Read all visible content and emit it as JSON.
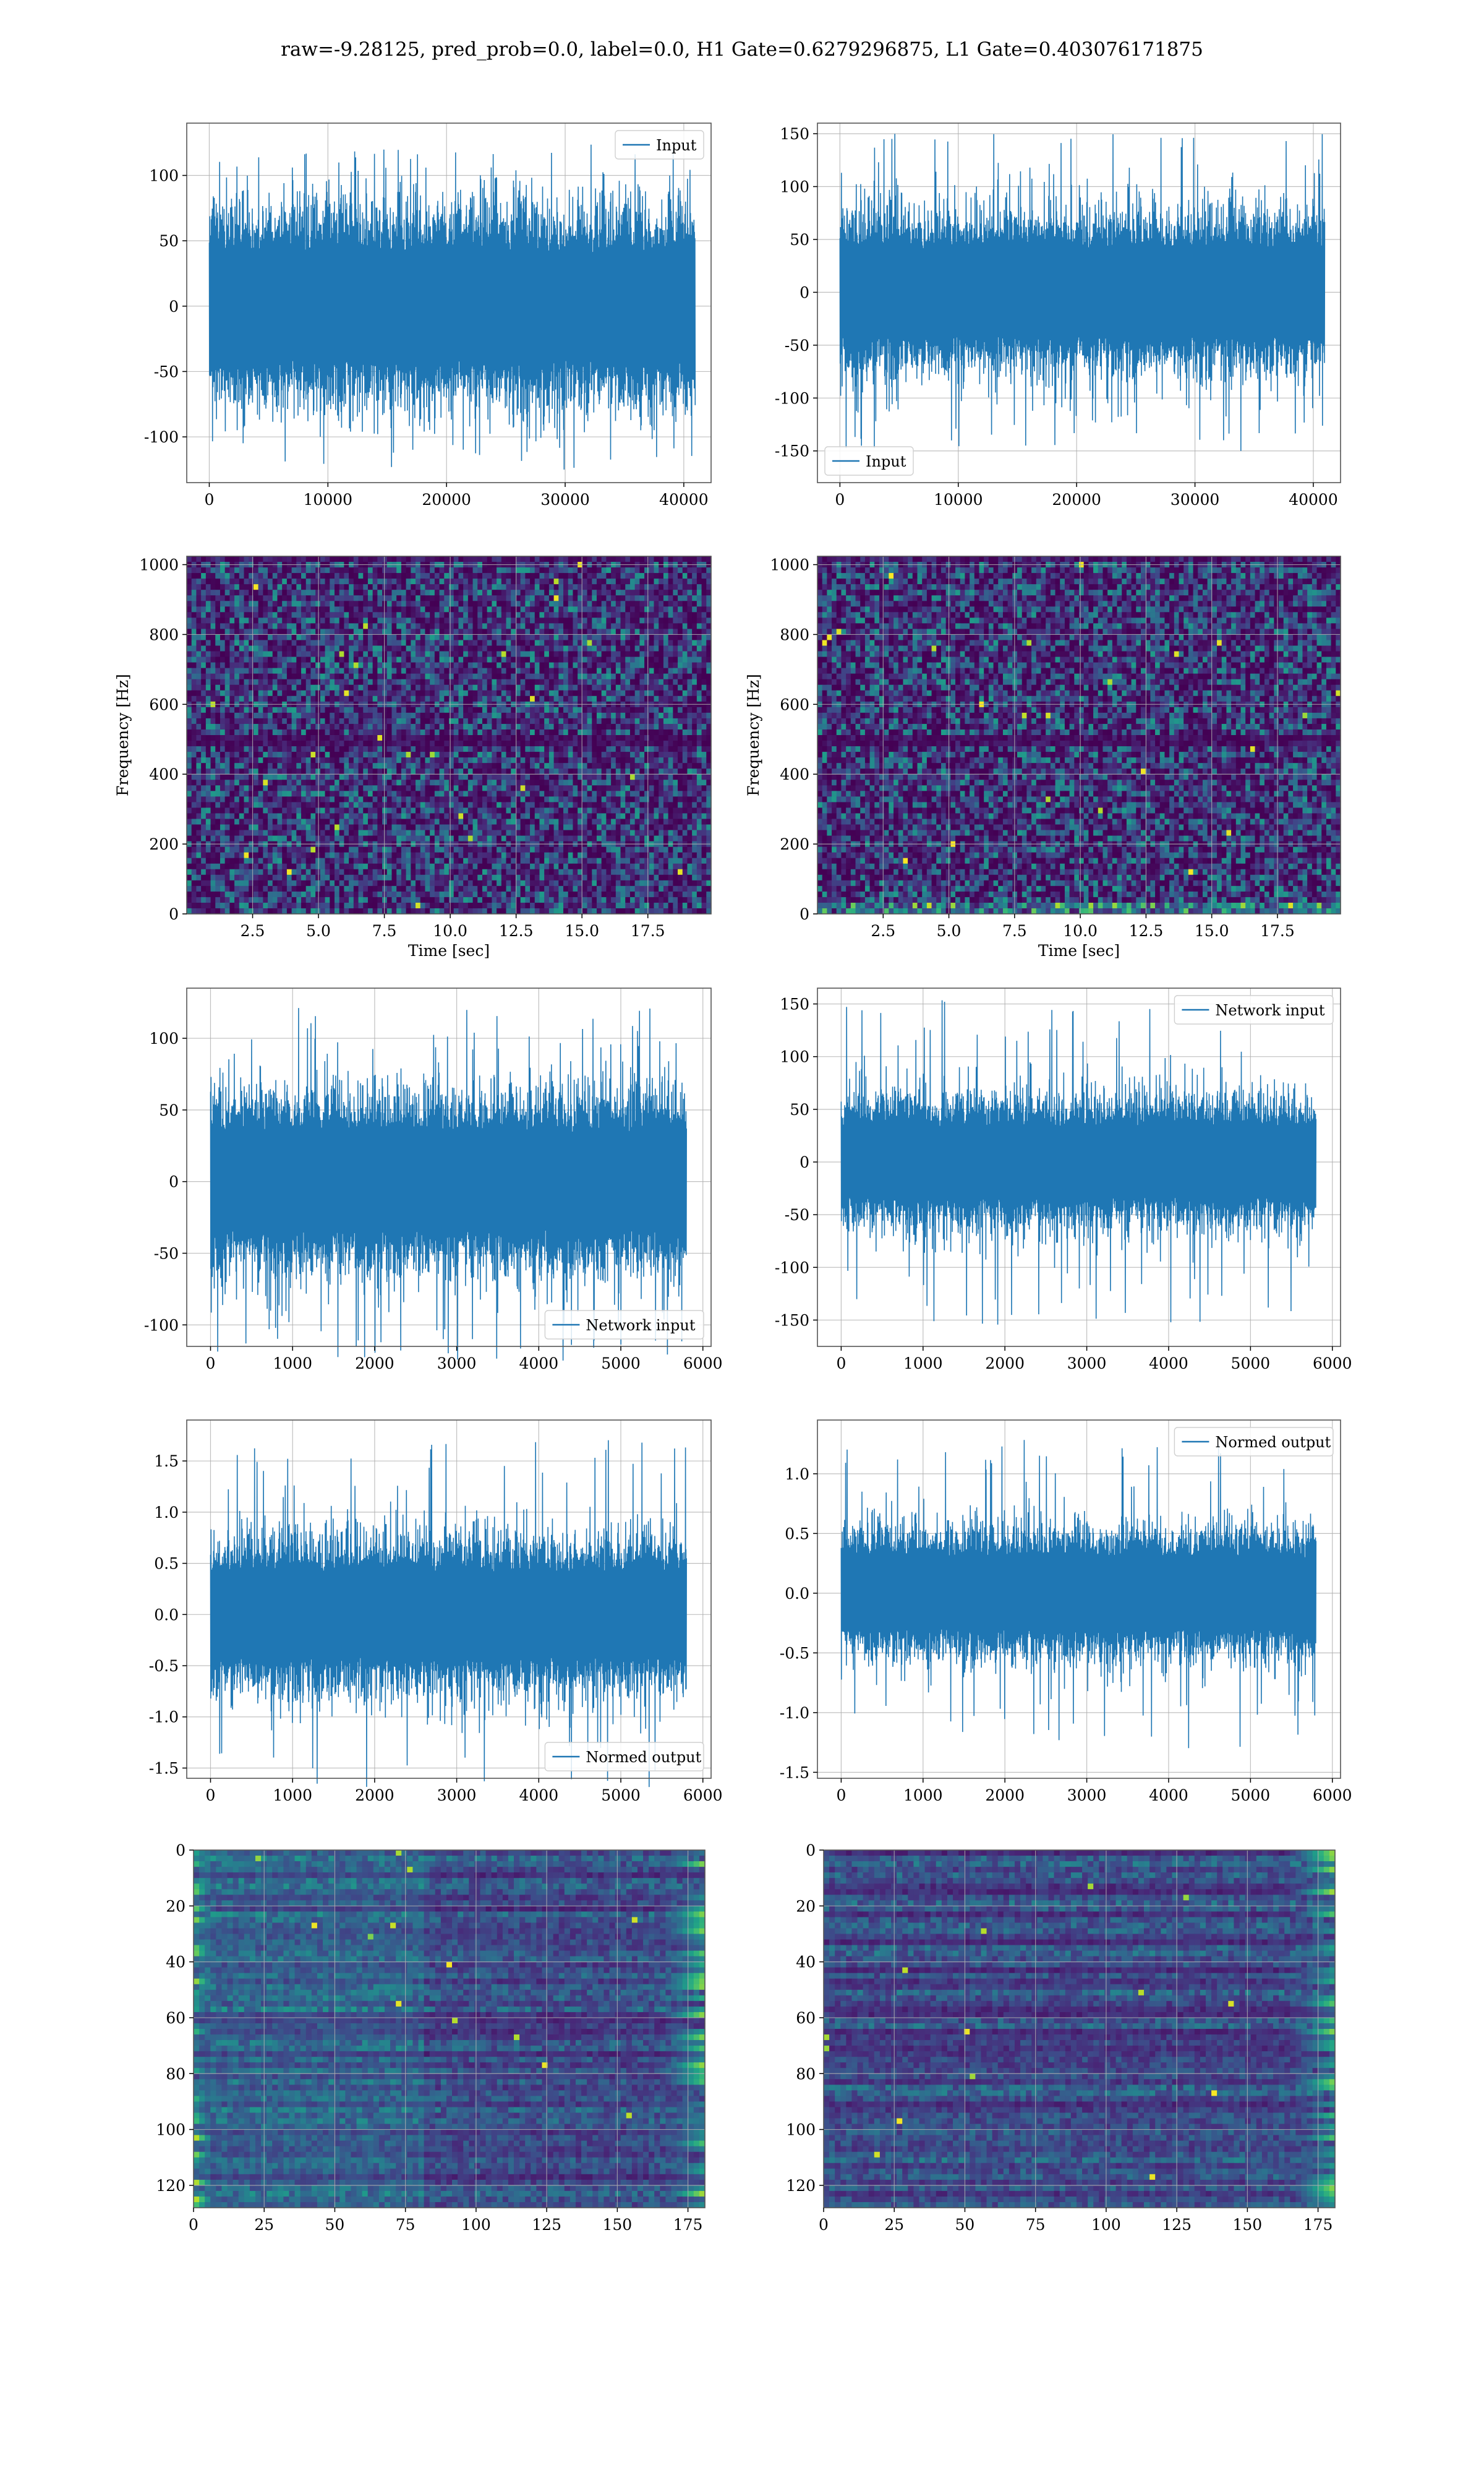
{
  "title": "raw=-9.28125, pred_prob=0.0, label=0.0, H1 Gate=0.6279296875, L1 Gate=0.403076171875",
  "colors": {
    "line": "#1f77b4",
    "viridis_dark": "#440154",
    "grid": "#b0b0b0"
  },
  "chart_data": [
    {
      "id": "h1-input",
      "type": "line",
      "series": [
        {
          "name": "Input"
        }
      ],
      "legend": "top-right",
      "xlim": [
        -1900,
        42300
      ],
      "ylim": [
        -135,
        140
      ],
      "xticks": [
        0,
        10000,
        20000,
        30000,
        40000
      ],
      "yticks": [
        -100,
        -50,
        0,
        50,
        100
      ],
      "x_extent": [
        0,
        40960
      ],
      "amplitude": {
        "core": 55,
        "peak": 125
      },
      "grid": true
    },
    {
      "id": "l1-input",
      "type": "line",
      "series": [
        {
          "name": "Input"
        }
      ],
      "legend": "bottom-left",
      "xlim": [
        -1900,
        42300
      ],
      "ylim": [
        -180,
        160
      ],
      "xticks": [
        0,
        10000,
        20000,
        30000,
        40000
      ],
      "yticks": [
        -150,
        -100,
        -50,
        0,
        50,
        100,
        150
      ],
      "x_extent": [
        0,
        40960
      ],
      "amplitude": {
        "core": 55,
        "peak": 150
      },
      "grid": true
    },
    {
      "id": "h1-spectrogram",
      "type": "heatmap",
      "xlabel": "Time [sec]",
      "ylabel": "Frequency [Hz]",
      "xlim": [
        0,
        19.9
      ],
      "ylim": [
        0,
        1024
      ],
      "xticks": [
        2.5,
        5.0,
        7.5,
        10.0,
        12.5,
        15.0,
        17.5
      ],
      "yticks": [
        0,
        200,
        400,
        600,
        800,
        1000
      ],
      "colormap": "viridis",
      "grid": true
    },
    {
      "id": "l1-spectrogram",
      "type": "heatmap",
      "xlabel": "Time [sec]",
      "ylabel": "Frequency [Hz]",
      "xlim": [
        0,
        19.9
      ],
      "ylim": [
        0,
        1024
      ],
      "xticks": [
        2.5,
        5.0,
        7.5,
        10.0,
        12.5,
        15.0,
        17.5
      ],
      "yticks": [
        0,
        200,
        400,
        600,
        800,
        1000
      ],
      "colormap": "viridis",
      "grid": true
    },
    {
      "id": "h1-network",
      "type": "line",
      "series": [
        {
          "name": "Network input"
        }
      ],
      "legend": "bottom-right",
      "xlim": [
        -290,
        6100
      ],
      "ylim": [
        -115,
        135
      ],
      "xticks": [
        0,
        1000,
        2000,
        3000,
        4000,
        5000,
        6000
      ],
      "yticks": [
        -100,
        -50,
        0,
        50,
        100
      ],
      "x_extent": [
        0,
        5800
      ],
      "amplitude": {
        "core": 45,
        "peak": 125
      },
      "grid": true
    },
    {
      "id": "l1-network",
      "type": "line",
      "series": [
        {
          "name": "Network input"
        }
      ],
      "legend": "top-right",
      "xlim": [
        -290,
        6100
      ],
      "ylim": [
        -175,
        165
      ],
      "xticks": [
        0,
        1000,
        2000,
        3000,
        4000,
        5000,
        6000
      ],
      "yticks": [
        -150,
        -100,
        -50,
        0,
        50,
        100,
        150
      ],
      "x_extent": [
        0,
        5800
      ],
      "amplitude": {
        "core": 45,
        "peak": 155
      },
      "grid": true
    },
    {
      "id": "h1-normed",
      "type": "line",
      "series": [
        {
          "name": "Normed output"
        }
      ],
      "legend": "bottom-right",
      "xlim": [
        -290,
        6100
      ],
      "ylim": [
        -1.6,
        1.9
      ],
      "xticks": [
        0,
        1000,
        2000,
        3000,
        4000,
        5000,
        6000
      ],
      "yticks": [
        -1.5,
        -1.0,
        -0.5,
        0.0,
        0.5,
        1.0,
        1.5
      ],
      "x_extent": [
        0,
        5800
      ],
      "amplitude": {
        "core": 0.55,
        "peak": 1.72
      },
      "grid": true
    },
    {
      "id": "l1-normed",
      "type": "line",
      "series": [
        {
          "name": "Normed output"
        }
      ],
      "legend": "top-right",
      "xlim": [
        -290,
        6100
      ],
      "ylim": [
        -1.55,
        1.45
      ],
      "xticks": [
        0,
        1000,
        2000,
        3000,
        4000,
        5000,
        6000
      ],
      "yticks": [
        -1.5,
        -1.0,
        -0.5,
        0.0,
        0.5,
        1.0
      ],
      "x_extent": [
        0,
        5800
      ],
      "amplitude": {
        "core": 0.4,
        "peak": 1.3
      },
      "grid": true
    },
    {
      "id": "h1-features",
      "type": "heatmap",
      "xlim": [
        0,
        181
      ],
      "ylim": [
        128,
        0
      ],
      "xticks": [
        0,
        25,
        50,
        75,
        100,
        125,
        150,
        175
      ],
      "yticks": [
        0,
        20,
        40,
        60,
        80,
        100,
        120
      ],
      "colormap": "viridis",
      "grid": true
    },
    {
      "id": "l1-features",
      "type": "heatmap",
      "xlim": [
        0,
        181
      ],
      "ylim": [
        128,
        0
      ],
      "xticks": [
        0,
        25,
        50,
        75,
        100,
        125,
        150,
        175
      ],
      "yticks": [
        0,
        20,
        40,
        60,
        80,
        100,
        120
      ],
      "colormap": "viridis",
      "grid": true
    }
  ]
}
